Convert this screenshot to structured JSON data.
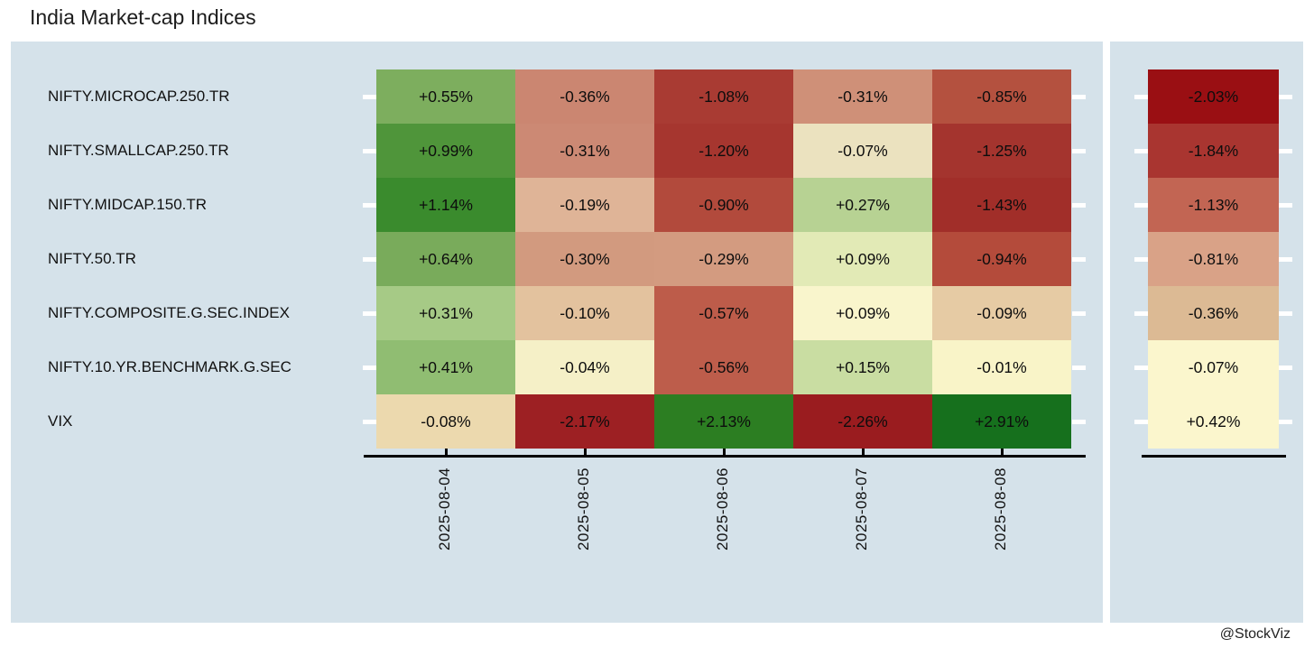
{
  "title": "India Market-cap Indices",
  "watermark": "@StockViz",
  "colors": {
    "panel_background": "#d5e2ea",
    "axis": "#000000",
    "tick_dash": "#ffffff",
    "text": "#111111"
  },
  "chart_data": {
    "type": "heatmap",
    "title": "India Market-cap Indices",
    "rows": [
      "NIFTY.MICROCAP.250.TR",
      "NIFTY.SMALLCAP.250.TR",
      "NIFTY.MIDCAP.150.TR",
      "NIFTY.50.TR",
      "NIFTY.COMPOSITE.G.SEC.INDEX",
      "NIFTY.10.YR.BENCHMARK.G.SEC",
      "VIX"
    ],
    "columns": [
      "2025-08-04",
      "2025-08-05",
      "2025-08-06",
      "2025-08-07",
      "2025-08-08"
    ],
    "values": [
      [
        0.55,
        -0.36,
        -1.08,
        -0.31,
        -0.85
      ],
      [
        0.99,
        -0.31,
        -1.2,
        -0.07,
        -1.25
      ],
      [
        1.14,
        -0.19,
        -0.9,
        0.27,
        -1.43
      ],
      [
        0.64,
        -0.3,
        -0.29,
        0.09,
        -0.94
      ],
      [
        0.31,
        -0.1,
        -0.57,
        0.09,
        -0.09
      ],
      [
        0.41,
        -0.04,
        -0.56,
        0.15,
        -0.01
      ],
      [
        -0.08,
        -2.17,
        2.13,
        -2.26,
        2.91
      ]
    ],
    "cell_labels": [
      [
        "+0.55%",
        "-0.36%",
        "-1.08%",
        "-0.31%",
        "-0.85%"
      ],
      [
        "+0.99%",
        "-0.31%",
        "-1.20%",
        "-0.07%",
        "-1.25%"
      ],
      [
        "+1.14%",
        "-0.19%",
        "-0.90%",
        "+0.27%",
        "-1.43%"
      ],
      [
        "+0.64%",
        "-0.30%",
        "-0.29%",
        "+0.09%",
        "-0.94%"
      ],
      [
        "+0.31%",
        "-0.10%",
        "-0.57%",
        "+0.09%",
        "-0.09%"
      ],
      [
        "+0.41%",
        "-0.04%",
        "-0.56%",
        "+0.15%",
        "-0.01%"
      ],
      [
        "-0.08%",
        "-2.17%",
        "+2.13%",
        "-2.26%",
        "+2.91%"
      ]
    ],
    "cell_colors": [
      [
        "#7dae5e",
        "#cb8671",
        "#a93b33",
        "#cf9078",
        "#b4513f"
      ],
      [
        "#4f953a",
        "#cc8974",
        "#a6362f",
        "#ebe2bf",
        "#a4342e"
      ],
      [
        "#3a8b2d",
        "#dfb497",
        "#b24a3c",
        "#b7d293",
        "#a12e29"
      ],
      [
        "#79ab5b",
        "#d29a7f",
        "#d39b80",
        "#e2eab6",
        "#b44b3b"
      ],
      [
        "#a6ca86",
        "#e3c29e",
        "#bd5c4a",
        "#f9f5cc",
        "#e6cba4"
      ],
      [
        "#90bd72",
        "#f5f0c7",
        "#bd5d4b",
        "#c9dda2",
        "#f9f4c8"
      ],
      [
        "#ecd9ae",
        "#9d2023",
        "#2c7e22",
        "#9a1c1f",
        "#16701d"
      ]
    ],
    "summary_column": {
      "values": [
        -2.03,
        -1.84,
        -1.13,
        -0.81,
        -0.36,
        -0.07,
        0.42
      ],
      "labels": [
        "-2.03%",
        "-1.84%",
        "-1.13%",
        "-0.81%",
        "-0.36%",
        "-0.07%",
        "+0.42%"
      ],
      "colors": [
        "#9a0f13",
        "#a93530",
        "#c26553",
        "#d9a287",
        "#dcba94",
        "#fbf6cd",
        "#fbf6cd"
      ]
    },
    "legend": "none",
    "grid": false,
    "colormap": "red-yellow-green (per-row scaled)"
  }
}
